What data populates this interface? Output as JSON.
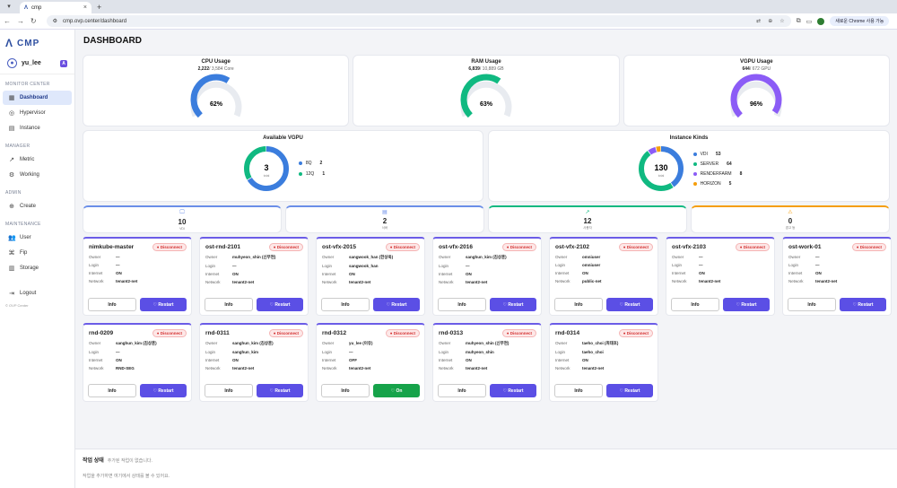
{
  "browser": {
    "tab_title": "cmp",
    "url": "cmp.ovp.center/dashboard",
    "new_chrome": "새로운 Chrome 사용 가능"
  },
  "app": {
    "logo": "CMP",
    "user": "yu_lee",
    "copyright": "© OVP Center"
  },
  "sidebar": {
    "sections": [
      {
        "title": "MONITOR CENTER",
        "items": [
          "Dashboard",
          "Hypervisor",
          "Instance"
        ]
      },
      {
        "title": "MANAGER",
        "items": [
          "Metric",
          "Working"
        ]
      },
      {
        "title": "ADMIN",
        "items": [
          "Create"
        ]
      },
      {
        "title": "MAINTENANCE",
        "items": [
          "User",
          "Fip",
          "Storage"
        ]
      }
    ],
    "logout": "Logout"
  },
  "page_title": "DASHBOARD",
  "usage": [
    {
      "title": "CPU Usage",
      "used": "2,222",
      "total": "/ 3,584 Core",
      "percent": "62%",
      "pct": 62,
      "color": "#3b7ddd"
    },
    {
      "title": "RAM Usage",
      "used": "6,839",
      "total": "/ 10,889 GB",
      "percent": "63%",
      "pct": 63,
      "color": "#10b981"
    },
    {
      "title": "VGPU Usage",
      "used": "644",
      "total": "/ 672 GPU",
      "percent": "96%",
      "pct": 96,
      "color": "#8b5cf6"
    }
  ],
  "vgpu": {
    "title": "Available VGPU",
    "total": "3",
    "total_label": "total",
    "items": [
      {
        "name": "8Q",
        "count": "2",
        "color": "#3b7ddd"
      },
      {
        "name": "12Q",
        "count": "1",
        "color": "#10b981"
      }
    ]
  },
  "kinds": {
    "title": "Instance Kinds",
    "total": "130",
    "total_label": "total",
    "items": [
      {
        "name": "VDI",
        "count": "53",
        "color": "#3b7ddd"
      },
      {
        "name": "SERVER",
        "count": "64",
        "color": "#10b981"
      },
      {
        "name": "RENDERFARM",
        "count": "8",
        "color": "#8b5cf6"
      },
      {
        "name": "HORIZON",
        "count": "5",
        "color": "#f59e0b"
      }
    ]
  },
  "stats": [
    {
      "icon": "🖵",
      "value": "10",
      "label": "VDI",
      "color": "#6b8ee8"
    },
    {
      "icon": "▤",
      "value": "2",
      "label": "서버",
      "color": "#6b8ee8"
    },
    {
      "icon": "↗",
      "value": "12",
      "label": "사용자",
      "color": "#10b981"
    },
    {
      "icon": "⚠",
      "value": "0",
      "label": "경고 등",
      "color": "#f59e0b"
    }
  ],
  "labels": {
    "owner": "Owner",
    "login": "Login",
    "internet": "Internet",
    "network": "Network",
    "disconnect": "Disconnect",
    "info": "Info",
    "restart": "Restart"
  },
  "instances": [
    {
      "name": "nimkube-master",
      "owner": "—",
      "login": "—",
      "internet": "ON",
      "network": "tenant2-net",
      "action": "Restart",
      "on": false
    },
    {
      "name": "ost-rnd-2101",
      "owner": "muhyeon_shin (신무현)",
      "login": "—",
      "internet": "ON",
      "network": "tenant2-net",
      "action": "Restart",
      "on": false
    },
    {
      "name": "ost-vfx-2015",
      "owner": "sangwook_han (한상욱)",
      "login": "sangwook_han",
      "internet": "ON",
      "network": "tenant2-net",
      "action": "Restart",
      "on": false
    },
    {
      "name": "ost-vfx-2016",
      "owner": "sanghun_kim (김상훈)",
      "login": "—",
      "internet": "ON",
      "network": "tenant2-net",
      "action": "Restart",
      "on": false
    },
    {
      "name": "ost-vfx-2102",
      "owner": "omniuser",
      "login": "omniuser",
      "internet": "ON",
      "network": "public-net",
      "action": "Restart",
      "on": false
    },
    {
      "name": "ost-vfx-2103",
      "owner": "—",
      "login": "—",
      "internet": "ON",
      "network": "tenant2-net",
      "action": "Restart",
      "on": false
    },
    {
      "name": "ost-work-01",
      "owner": "—",
      "login": "—",
      "internet": "ON",
      "network": "tenant2-net",
      "action": "Restart",
      "on": false
    },
    {
      "name": "rnd-0209",
      "owner": "sanghun_kim (김상훈)",
      "login": "—",
      "internet": "ON",
      "network": "RND-SEG",
      "action": "Restart",
      "on": false
    },
    {
      "name": "rnd-0311",
      "owner": "sanghun_kim (김상훈)",
      "login": "sanghun_kim",
      "internet": "ON",
      "network": "tenant2-net",
      "action": "Restart",
      "on": false
    },
    {
      "name": "rnd-0312",
      "owner": "yu_lee (이유)",
      "login": "—",
      "internet": "OFF",
      "network": "tenant2-net",
      "action": "On",
      "on": true
    },
    {
      "name": "rnd-0313",
      "owner": "muhyeon_shin (신무현)",
      "login": "muhyeon_shin",
      "internet": "ON",
      "network": "tenant2-net",
      "action": "Restart",
      "on": false
    },
    {
      "name": "rnd-0314",
      "owner": "taeho_choi (최태호)",
      "login": "taeho_choi",
      "internet": "ON",
      "network": "tenant2-net",
      "action": "Restart",
      "on": false
    }
  ],
  "jobs": {
    "title": "작업 상태",
    "subtitle": "추가된 작업이 없습니다.",
    "desc": "작업을 추가하면 여기에서 상태를 볼 수 있어요."
  }
}
